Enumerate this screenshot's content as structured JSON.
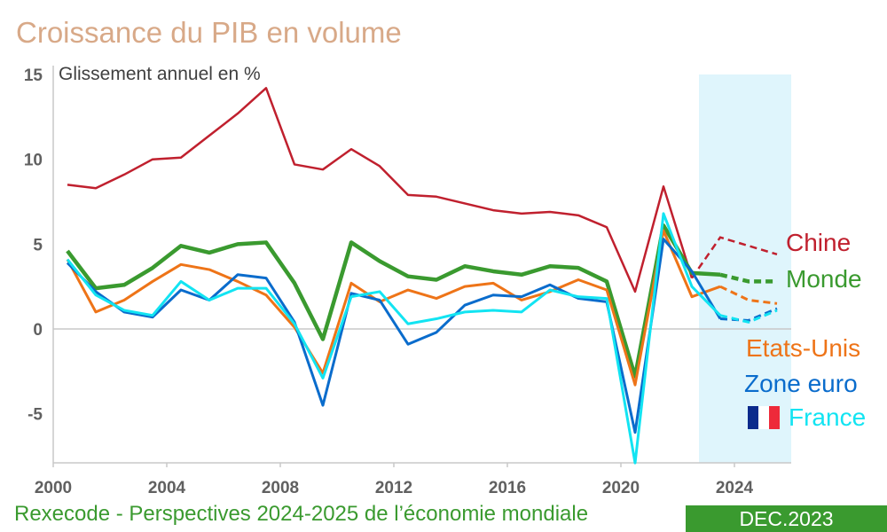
{
  "title": "Croissance du PIB en volume",
  "footer": "Rexecode - Perspectives 2024-2025 de l’économie mondiale",
  "date_badge": "DEC.2023",
  "chart_data": {
    "type": "line",
    "subtitle": "Glissement annuel en %",
    "x": [
      2000,
      2001,
      2002,
      2003,
      2004,
      2005,
      2006,
      2007,
      2008,
      2009,
      2010,
      2011,
      2012,
      2013,
      2014,
      2015,
      2016,
      2017,
      2018,
      2019,
      2020,
      2021,
      2022,
      2023,
      2024,
      2025
    ],
    "forecast_from": 2023,
    "forecast_shading": [
      2022.75,
      2026
    ],
    "xlim": [
      2000,
      2026
    ],
    "ylim": [
      -7.9,
      15
    ],
    "xticks": [
      2000,
      2004,
      2008,
      2012,
      2016,
      2020,
      2024
    ],
    "yticks": [
      -5,
      0,
      5,
      10,
      15
    ],
    "grid": "zero line only",
    "legend": "right, inline labels",
    "series": [
      {
        "name": "Chine",
        "color": "#c0202e",
        "width": 2.5,
        "values": [
          8.5,
          8.3,
          9.1,
          10.0,
          10.1,
          11.4,
          12.7,
          14.2,
          9.7,
          9.4,
          10.6,
          9.6,
          7.9,
          7.8,
          7.4,
          7.0,
          6.8,
          6.9,
          6.7,
          6.0,
          2.2,
          8.4,
          3.0,
          5.4,
          4.9,
          4.4
        ]
      },
      {
        "name": "Monde",
        "color": "#3a9a2f",
        "width": 4.5,
        "values": [
          4.6,
          2.4,
          2.6,
          3.6,
          4.9,
          4.5,
          5.0,
          5.1,
          2.7,
          -0.6,
          5.1,
          4.0,
          3.1,
          2.9,
          3.7,
          3.4,
          3.2,
          3.7,
          3.6,
          2.8,
          -2.8,
          6.1,
          3.3,
          3.2,
          2.8,
          2.8
        ]
      },
      {
        "name": "Etats-Unis",
        "color": "#ee7418",
        "width": 3,
        "values": [
          4.1,
          1.0,
          1.7,
          2.8,
          3.8,
          3.5,
          2.8,
          2.0,
          0.1,
          -2.6,
          2.7,
          1.6,
          2.3,
          1.8,
          2.5,
          2.7,
          1.7,
          2.2,
          2.9,
          2.3,
          -3.3,
          5.8,
          1.9,
          2.5,
          1.7,
          1.5
        ]
      },
      {
        "name": "Zone euro",
        "color": "#0a6ccc",
        "width": 3,
        "values": [
          3.9,
          2.2,
          1.0,
          0.7,
          2.3,
          1.7,
          3.2,
          3.0,
          0.4,
          -4.5,
          2.1,
          1.7,
          -0.9,
          -0.2,
          1.4,
          2.0,
          1.9,
          2.6,
          1.8,
          1.6,
          -6.1,
          5.3,
          3.4,
          0.6,
          0.5,
          1.2
        ]
      },
      {
        "name": "France",
        "color": "#12e4f2",
        "width": 3,
        "values": [
          4.1,
          2.0,
          1.1,
          0.8,
          2.8,
          1.7,
          2.4,
          2.4,
          0.3,
          -2.9,
          1.9,
          2.2,
          0.3,
          0.6,
          1.0,
          1.1,
          1.0,
          2.3,
          1.9,
          1.8,
          -7.9,
          6.8,
          2.5,
          0.8,
          0.4,
          1.1
        ]
      }
    ]
  }
}
